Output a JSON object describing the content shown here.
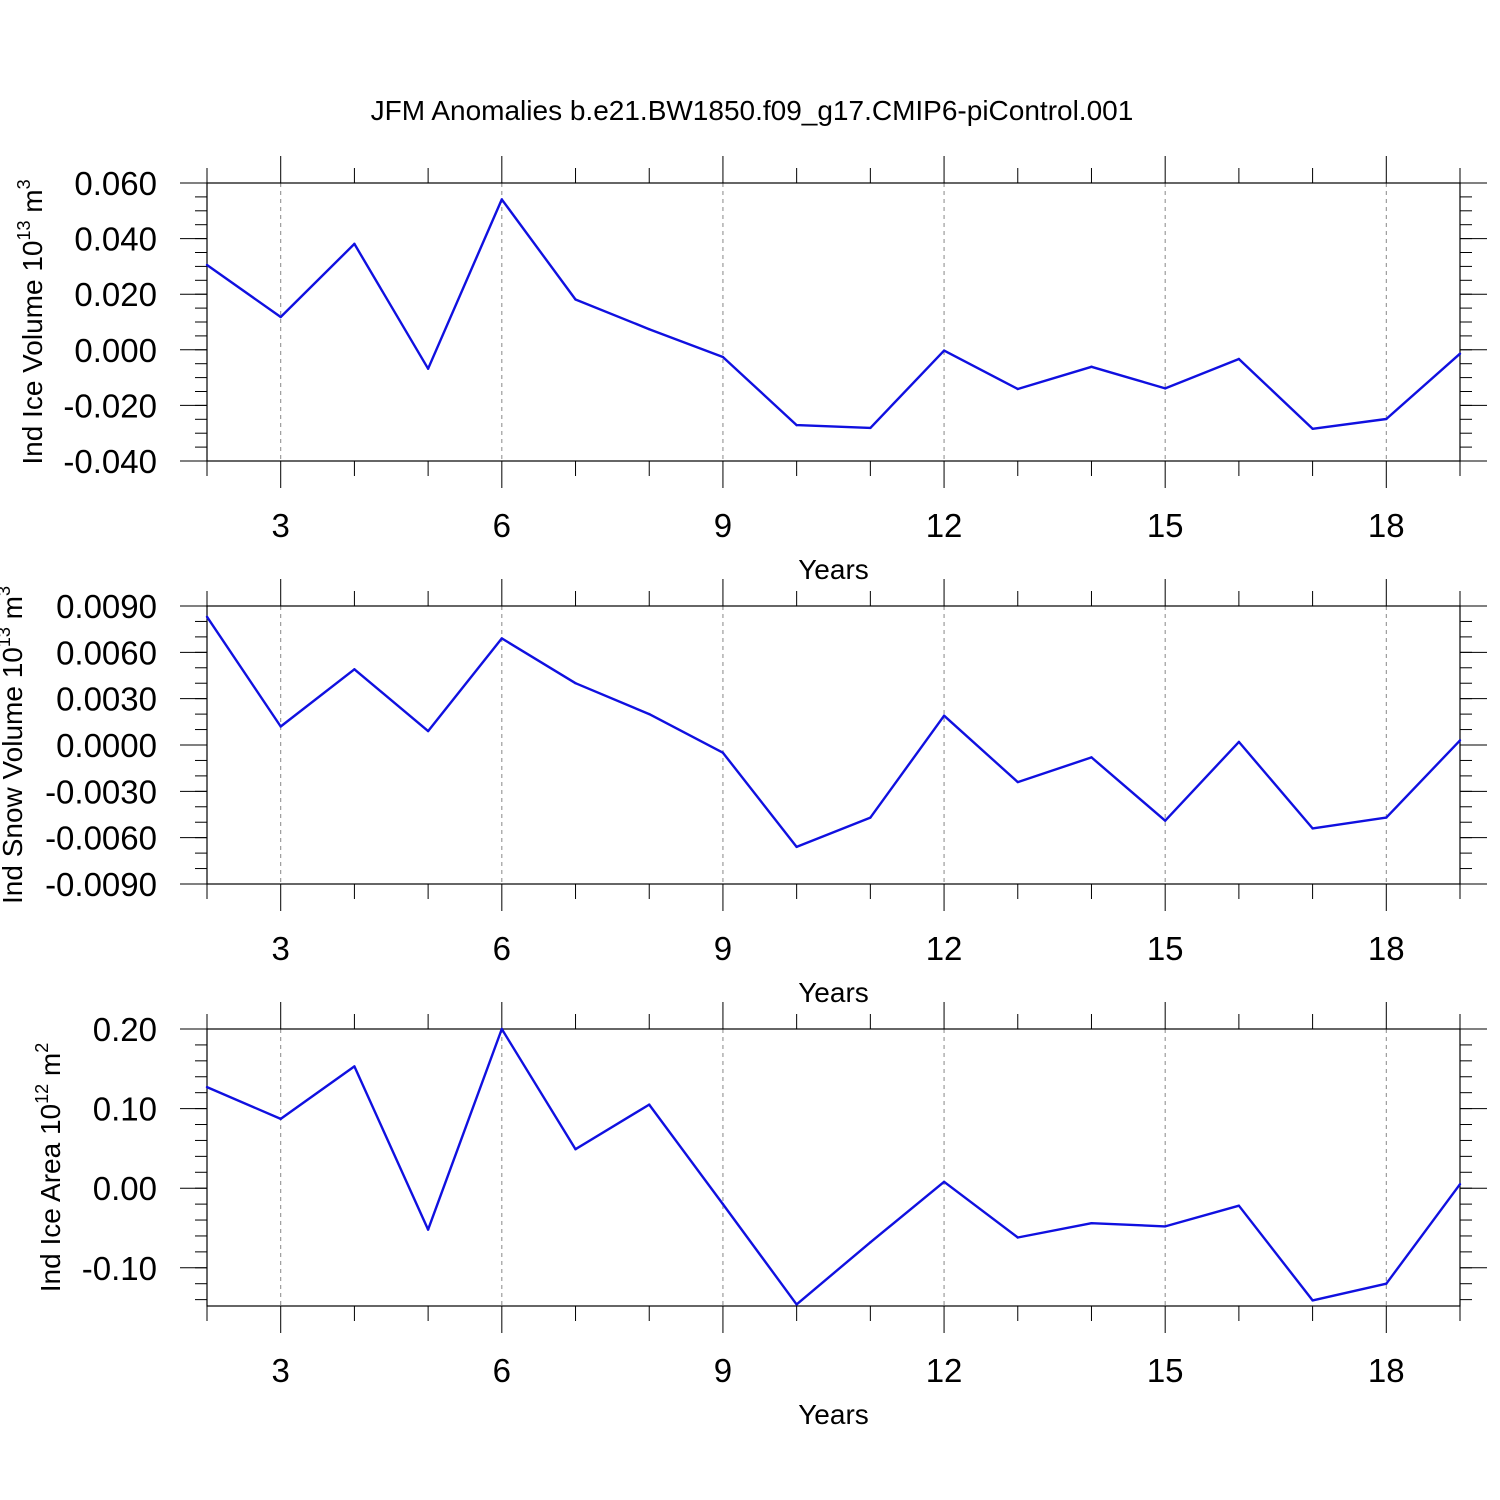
{
  "title": "JFM Anomalies b.e21.BW1850.f09_g17.CMIP6-piControl.001",
  "chart_data": [
    {
      "type": "line",
      "ylabel": "Ind Ice Volume 10",
      "ylabel_exp": "13",
      "ylabel_unit": " m",
      "ylabel_unit_exp": "3",
      "xlabel": "Years",
      "x_ticks": [
        3,
        6,
        9,
        12,
        15,
        18
      ],
      "x_tick_labels": [
        "3",
        "6",
        "9",
        "12",
        "15",
        "18"
      ],
      "xlim": [
        2,
        19
      ],
      "y_ticks": [
        0.06,
        0.04,
        0.02,
        0.0,
        -0.02,
        -0.04
      ],
      "y_tick_labels": [
        "0.060",
        "0.040",
        "0.020",
        "0.000",
        "-0.020",
        "-0.040"
      ],
      "ylim": [
        -0.04,
        0.06
      ],
      "y_minor_step": 0.005,
      "grid": "vertical dashed at major x ticks",
      "line_color": "#1010e0",
      "x": [
        2,
        3,
        4,
        5,
        6,
        7,
        8,
        9,
        10,
        11,
        12,
        13,
        14,
        15,
        16,
        17,
        18,
        19
      ],
      "values": [
        0.0305,
        0.0118,
        0.0381,
        -0.0068,
        0.0541,
        0.0181,
        0.0074,
        -0.0026,
        -0.0271,
        -0.0281,
        -0.0003,
        -0.0141,
        -0.0061,
        -0.0139,
        -0.0033,
        -0.0284,
        -0.0249,
        -0.0014
      ]
    },
    {
      "type": "line",
      "ylabel": "Ind Snow Volume 10",
      "ylabel_exp": "13",
      "ylabel_unit": " m",
      "ylabel_unit_exp": "3",
      "xlabel": "Years",
      "x_ticks": [
        3,
        6,
        9,
        12,
        15,
        18
      ],
      "x_tick_labels": [
        "3",
        "6",
        "9",
        "12",
        "15",
        "18"
      ],
      "xlim": [
        2,
        19
      ],
      "y_ticks": [
        0.009,
        0.006,
        0.003,
        0.0,
        -0.003,
        -0.006,
        -0.009
      ],
      "y_tick_labels": [
        "0.0090",
        "0.0060",
        "0.0030",
        "0.0000",
        "-0.0030",
        "-0.0060",
        "-0.0090"
      ],
      "ylim": [
        -0.009,
        0.009
      ],
      "y_minor_step": 0.001,
      "grid": "vertical dashed at major x ticks",
      "line_color": "#1010e0",
      "x": [
        2,
        3,
        4,
        5,
        6,
        7,
        8,
        9,
        10,
        11,
        12,
        13,
        14,
        15,
        16,
        17,
        18,
        19
      ],
      "values": [
        0.0083,
        0.0012,
        0.0049,
        0.0009,
        0.0069,
        0.004,
        0.002,
        -0.0005,
        -0.0066,
        -0.0047,
        0.0019,
        -0.0024,
        -0.0008,
        -0.0049,
        0.0002,
        -0.0054,
        -0.0047,
        0.0003
      ]
    },
    {
      "type": "line",
      "ylabel": "Ind Ice Area 10",
      "ylabel_exp": "12",
      "ylabel_unit": " m",
      "ylabel_unit_exp": "2",
      "xlabel": "Years",
      "x_ticks": [
        3,
        6,
        9,
        12,
        15,
        18
      ],
      "x_tick_labels": [
        "3",
        "6",
        "9",
        "12",
        "15",
        "18"
      ],
      "xlim": [
        2,
        19
      ],
      "y_ticks": [
        0.2,
        0.1,
        0.0,
        -0.1
      ],
      "y_tick_labels": [
        "0.20",
        "0.10",
        "0.00",
        "-0.10"
      ],
      "ylim": [
        -0.148,
        0.2
      ],
      "y_minor_step": 0.02,
      "grid": "vertical dashed at major x ticks",
      "line_color": "#1010e0",
      "x": [
        2,
        3,
        4,
        5,
        6,
        7,
        8,
        9,
        10,
        11,
        12,
        13,
        14,
        15,
        16,
        17,
        18,
        19
      ],
      "values": [
        0.127,
        0.087,
        0.153,
        -0.052,
        0.2,
        0.049,
        0.105,
        -0.02,
        -0.146,
        -0.068,
        0.008,
        -0.062,
        -0.044,
        -0.048,
        -0.022,
        -0.141,
        -0.12,
        0.005
      ]
    }
  ]
}
